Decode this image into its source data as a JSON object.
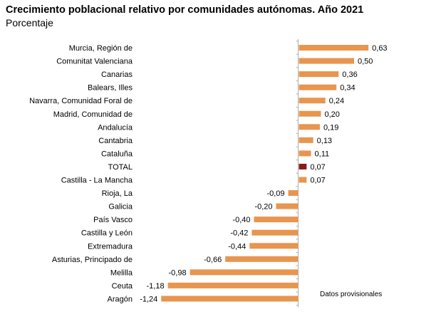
{
  "title": "Crecimiento poblacional relativo por comunidades autónomas. Año 2021",
  "subtitle": "Porcentaje",
  "note": "Datos provisionales",
  "colors": {
    "bar": "#E8954F",
    "highlight": "#8B1A1A",
    "axis": "#b0b0b0"
  },
  "chart_data": {
    "type": "bar",
    "orientation": "horizontal",
    "categories": [
      "Murcia, Región de",
      "Comunitat Valenciana",
      "Canarias",
      "Balears, Illes",
      "Navarra, Comunidad Foral de",
      "Madrid, Comunidad de",
      "Andalucía",
      "Cantabria",
      "Cataluña",
      "TOTAL",
      "Castilla - La Mancha",
      "Rioja, La",
      "Galicia",
      "País Vasco",
      "Castilla y León",
      "Extremadura",
      "Asturias, Principado de",
      "Melilla",
      "Ceuta",
      "Aragón"
    ],
    "values": [
      0.63,
      0.5,
      0.36,
      0.34,
      0.24,
      0.2,
      0.19,
      0.13,
      0.11,
      0.07,
      0.07,
      -0.09,
      -0.2,
      -0.4,
      -0.42,
      -0.44,
      -0.66,
      -0.98,
      -1.18,
      -1.24
    ],
    "value_labels": [
      "0,63",
      "0,50",
      "0,36",
      "0,34",
      "0,24",
      "0,20",
      "0,19",
      "0,13",
      "0,11",
      "0,07",
      "0,07",
      "-0,09",
      "-0,20",
      "-0,40",
      "-0,42",
      "-0,44",
      "-0,66",
      "-0,98",
      "-1,18",
      "-1,24"
    ],
    "highlight_category": "TOTAL",
    "title": "Crecimiento poblacional relativo por comunidades autónomas. Año 2021",
    "subtitle": "Porcentaje",
    "xlim": [
      -1.24,
      0.63
    ],
    "grid": false,
    "legend": "none"
  }
}
